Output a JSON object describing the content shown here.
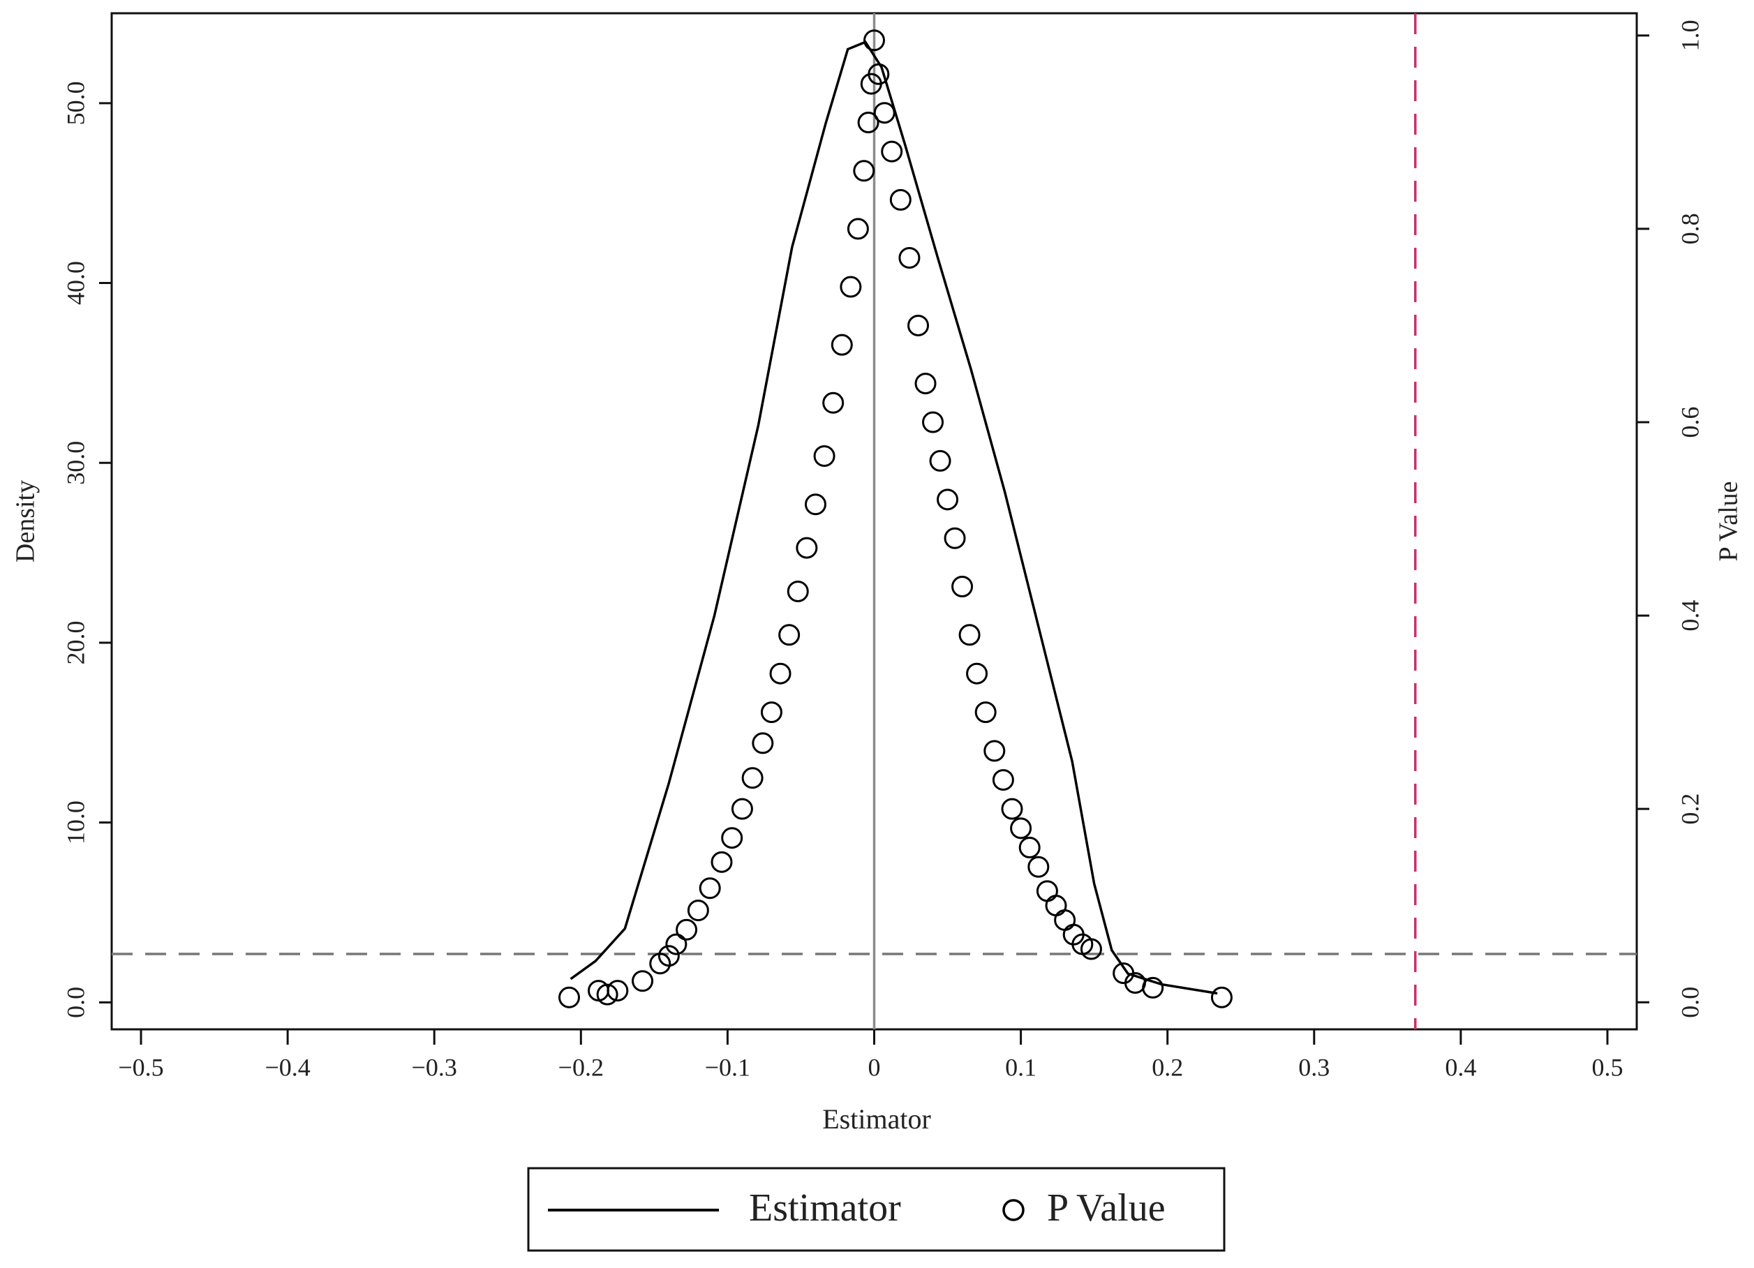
{
  "chart_data": {
    "type": "line-scatter",
    "xlabel": "Estimator",
    "ylabel": "Density",
    "y2label": "P Value",
    "xlim": [
      -0.52,
      0.52
    ],
    "ylim": [
      -1.5,
      55
    ],
    "y2lim": [
      -0.028,
      1.023
    ],
    "xticks": [
      {
        "value": -0.5,
        "label": "−0.5"
      },
      {
        "value": -0.4,
        "label": "−0.4"
      },
      {
        "value": -0.3,
        "label": "−0.3"
      },
      {
        "value": -0.2,
        "label": "−0.2"
      },
      {
        "value": -0.1,
        "label": "−0.1"
      },
      0,
      0.1,
      0.2,
      0.3,
      0.4,
      0.5
    ],
    "yticks": [
      {
        "value": 0,
        "label": "0.0"
      },
      {
        "value": 10,
        "label": "10.0"
      },
      {
        "value": 20,
        "label": "20.0"
      },
      {
        "value": 30,
        "label": "30.0"
      },
      {
        "value": 40,
        "label": "40.0"
      },
      {
        "value": 50,
        "label": "50.0"
      }
    ],
    "y2ticks": [
      {
        "value": 0,
        "label": "0.0"
      },
      0.2,
      0.4,
      0.6,
      0.8,
      {
        "value": 1,
        "label": "1.0"
      }
    ],
    "series": [
      {
        "name": "Estimator",
        "color": "#000000",
        "x": [
          -0.207,
          -0.19,
          -0.17,
          -0.14,
          -0.109,
          -0.079,
          -0.056,
          -0.033,
          -0.018,
          -0.006,
          0.005,
          0.021,
          0.043,
          0.066,
          0.089,
          0.112,
          0.135,
          0.15,
          0.162,
          0.173,
          0.196,
          0.234
        ],
        "values": [
          1.3,
          2.3,
          4.1,
          12.2,
          21.5,
          32.1,
          42,
          48.9,
          53,
          53.4,
          52,
          47.7,
          41.5,
          35.2,
          28.4,
          20.9,
          13.4,
          6.6,
          2.9,
          1.6,
          1.0,
          0.5
        ]
      },
      {
        "name": "P Value",
        "color": "#000000",
        "axis": "y2",
        "x": [
          -0.208,
          -0.188,
          -0.182,
          -0.175,
          -0.158,
          -0.146,
          -0.14,
          -0.135,
          -0.128,
          -0.12,
          -0.112,
          -0.104,
          -0.097,
          -0.09,
          -0.083,
          -0.076,
          -0.07,
          -0.064,
          -0.058,
          -0.052,
          -0.046,
          -0.04,
          -0.034,
          -0.028,
          -0.022,
          -0.016,
          -0.011,
          -0.007,
          -0.004,
          -0.002,
          0,
          0.003,
          0.007,
          0.012,
          0.018,
          0.024,
          0.03,
          0.035,
          0.04,
          0.045,
          0.05,
          0.055,
          0.06,
          0.065,
          0.07,
          0.076,
          0.082,
          0.088,
          0.094,
          0.1,
          0.106,
          0.112,
          0.118,
          0.124,
          0.13,
          0.136,
          0.142,
          0.148,
          0.17,
          0.178,
          0.19,
          0.237
        ],
        "values": [
          0.005,
          0.012,
          0.008,
          0.012,
          0.022,
          0.04,
          0.048,
          0.06,
          0.075,
          0.095,
          0.118,
          0.145,
          0.17,
          0.2,
          0.232,
          0.268,
          0.3,
          0.34,
          0.38,
          0.425,
          0.47,
          0.515,
          0.565,
          0.62,
          0.68,
          0.74,
          0.8,
          0.86,
          0.91,
          0.95,
          0.995,
          0.96,
          0.92,
          0.88,
          0.83,
          0.77,
          0.7,
          0.64,
          0.6,
          0.56,
          0.52,
          0.48,
          0.43,
          0.38,
          0.34,
          0.3,
          0.26,
          0.23,
          0.2,
          0.18,
          0.16,
          0.14,
          0.115,
          0.1,
          0.085,
          0.07,
          0.06,
          0.055,
          0.03,
          0.02,
          0.015,
          0.005
        ]
      }
    ],
    "reference_lines": [
      {
        "axis": "x",
        "value": 0,
        "color": "#8c8c8c",
        "style": "solid"
      },
      {
        "axis": "x",
        "value": 0.369,
        "color": "#c8306a",
        "style": "dashed"
      },
      {
        "axis": "y2",
        "value": 0.05,
        "color": "#777777",
        "style": "dashed"
      }
    ],
    "legend": "bottom"
  }
}
